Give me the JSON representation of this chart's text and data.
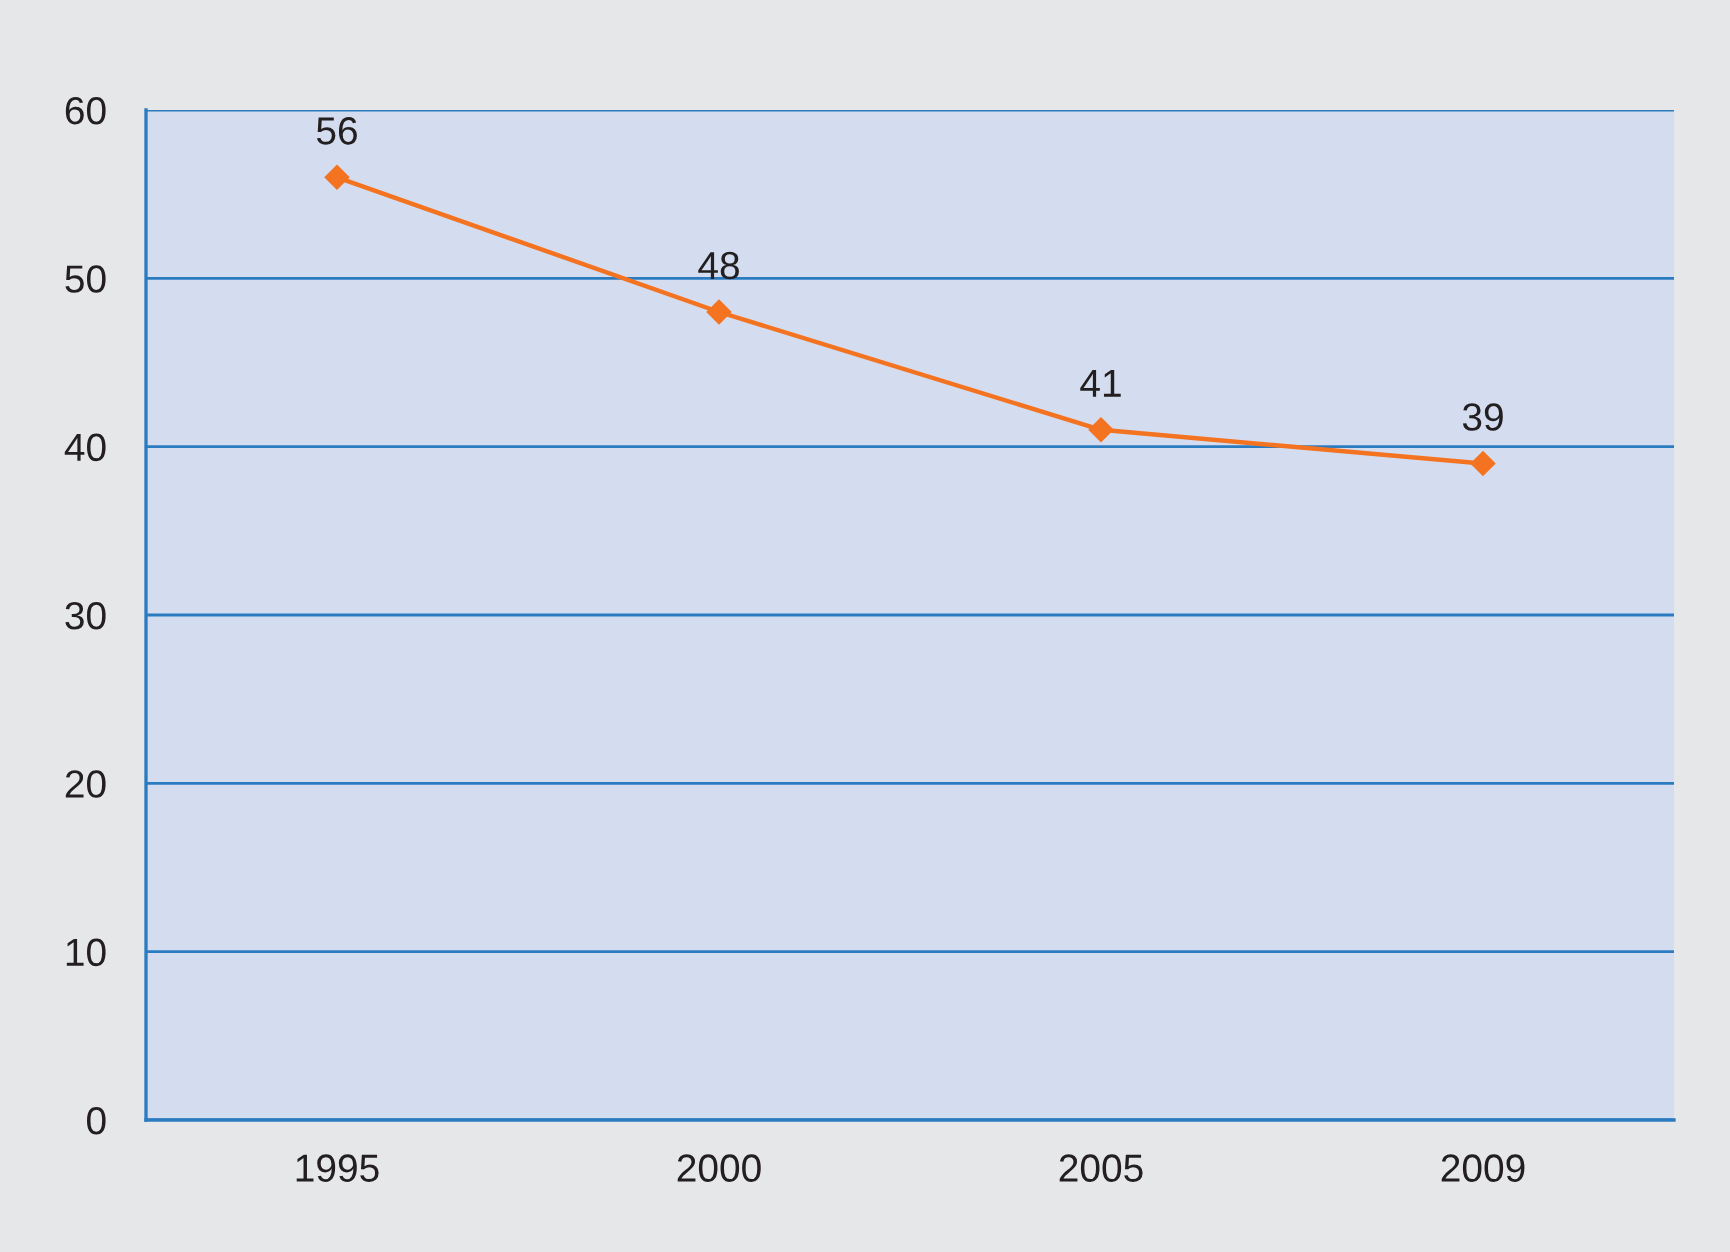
{
  "chart_data": {
    "type": "line",
    "categories": [
      "1995",
      "2000",
      "2005",
      "2009"
    ],
    "series": [
      {
        "color": "#f47321",
        "values": [
          56,
          48,
          41,
          39
        ]
      }
    ],
    "ylim": [
      0,
      60
    ],
    "yticks": [
      0,
      10,
      20,
      30,
      40,
      50,
      60
    ],
    "grid": "y",
    "legend": false,
    "marker": "diamond",
    "line_style": "solid",
    "data_labels": true
  }
}
